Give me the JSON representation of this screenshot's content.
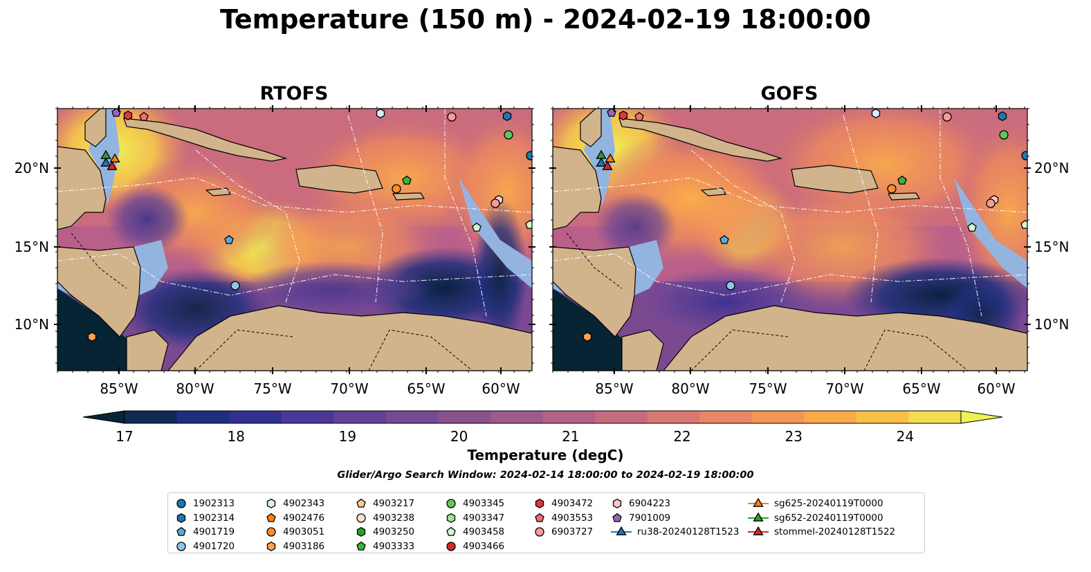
{
  "title": "Temperature (150 m) - 2024-02-19 18:00:00",
  "panels": [
    {
      "title": "RTOFS"
    },
    {
      "title": "GOFS"
    }
  ],
  "axes": {
    "lon_ticks": [
      "85°W",
      "80°W",
      "75°W",
      "70°W",
      "65°W",
      "60°W"
    ],
    "lat_ticks": [
      "20°N",
      "15°N",
      "10°N"
    ]
  },
  "colorbar": {
    "label": "Temperature (degC)",
    "ticks": [
      "17",
      "18",
      "19",
      "20",
      "21",
      "22",
      "23",
      "24"
    ],
    "colors": [
      "#062433",
      "#0e2a53",
      "#1d2f7a",
      "#312f8f",
      "#4a3797",
      "#5f4195",
      "#744a92",
      "#89528f",
      "#9d5a8b",
      "#b26286",
      "#c66b7e",
      "#d97773",
      "#ea8566",
      "#f49655",
      "#faa948",
      "#fbc047",
      "#f3dd4f",
      "#eff254"
    ]
  },
  "search_window": "Glider/Argo Search Window: 2024-02-14 18:00:00 to 2024-02-19 18:00:00",
  "legend": {
    "columns": [
      [
        {
          "label": "1902313",
          "marker": "circle",
          "color": "#1f77b4"
        },
        {
          "label": "1902314",
          "marker": "hexagon",
          "color": "#1f77b4"
        },
        {
          "label": "4901719",
          "marker": "pentagon",
          "color": "#5aa7dc"
        },
        {
          "label": "4901720",
          "marker": "circle",
          "color": "#8ec5ea"
        }
      ],
      [
        {
          "label": "4902343",
          "marker": "hexagon",
          "color": "#d6ecf9"
        },
        {
          "label": "4902476",
          "marker": "pentagon",
          "color": "#ff7f0e"
        },
        {
          "label": "4903051",
          "marker": "circle",
          "color": "#ff8c28"
        },
        {
          "label": "4903186",
          "marker": "hexagon",
          "color": "#ffa04d"
        }
      ],
      [
        {
          "label": "4903217",
          "marker": "pentagon",
          "color": "#ffc896"
        },
        {
          "label": "4903238",
          "marker": "circle",
          "color": "#ffe2c6"
        },
        {
          "label": "4903250",
          "marker": "hexagon",
          "color": "#2ca02c"
        },
        {
          "label": "4903333",
          "marker": "pentagon",
          "color": "#3cb43c"
        }
      ],
      [
        {
          "label": "4903345",
          "marker": "circle",
          "color": "#5fc85f"
        },
        {
          "label": "4903347",
          "marker": "hexagon",
          "color": "#98e698"
        },
        {
          "label": "4903458",
          "marker": "pentagon",
          "color": "#d2f5d2"
        },
        {
          "label": "4903466",
          "marker": "circle",
          "color": "#d62728"
        }
      ],
      [
        {
          "label": "4903472",
          "marker": "hexagon",
          "color": "#e0383a"
        },
        {
          "label": "4903553",
          "marker": "pentagon",
          "color": "#f26d73"
        },
        {
          "label": "6903727",
          "marker": "circle",
          "color": "#f79a9a"
        }
      ],
      [
        {
          "label": "6904223",
          "marker": "hexagon",
          "color": "#fcc8c8"
        },
        {
          "label": "7901009",
          "marker": "pentagon",
          "color": "#9467bd"
        },
        {
          "label": "ru38-20240128T1523",
          "marker": "triangle-line",
          "color": "#1f77b4"
        }
      ],
      [
        {
          "label": "sg625-20240119T0000",
          "marker": "triangle-line",
          "color": "#ff7f0e"
        },
        {
          "label": "sg652-20240119T0000",
          "marker": "triangle-line",
          "color": "#2ca02c"
        },
        {
          "label": "stommel-20240128T1522",
          "marker": "triangle-line",
          "color": "#d62728"
        }
      ]
    ]
  },
  "map_colors": {
    "land": "#d2b48c",
    "shelf": "#94b4e0",
    "deep": "#062433",
    "coast": "#000000"
  }
}
